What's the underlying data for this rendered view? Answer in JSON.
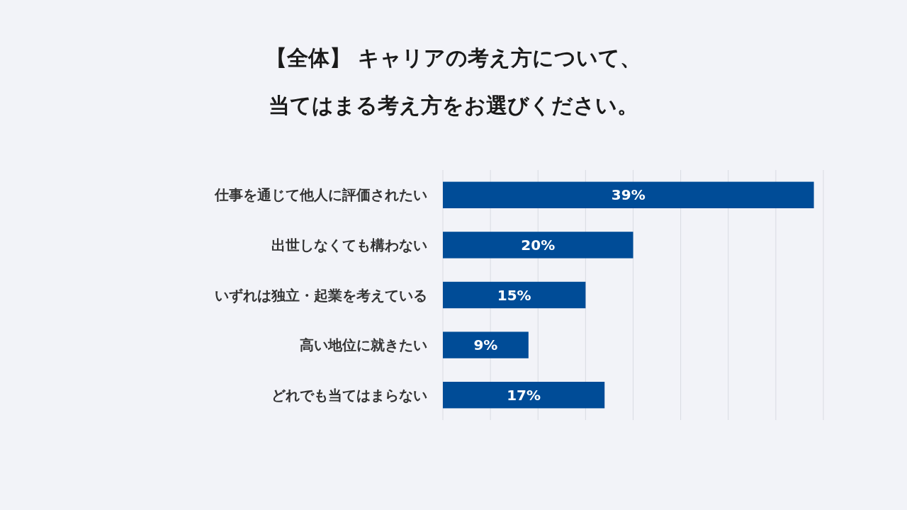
{
  "chart_data": {
    "type": "bar",
    "orientation": "horizontal",
    "title": "【全体】 キャリアの考え方について、",
    "subtitle": "当てはまる考え方をお選びください。",
    "categories": [
      "仕事を通じて他人に評価されたい",
      "出世しなくても構わない",
      "いずれは独立・起業を考えている",
      "高い地位に就きたい",
      "どれでも当てはまらない"
    ],
    "values": [
      39,
      20,
      15,
      9,
      17
    ],
    "color": "#004c97",
    "data_labels": true,
    "value_labels": [
      "39%",
      "20%",
      "15%",
      "9%",
      "17%"
    ],
    "xlim": [
      0,
      40
    ],
    "xticks": [
      {
        "value": 0,
        "label": null
      },
      {
        "value": 5,
        "label": null
      },
      {
        "value": 10,
        "label": null
      },
      {
        "value": 15,
        "label": null
      },
      {
        "value": 20,
        "label": null
      },
      {
        "value": 25,
        "label": null
      },
      {
        "value": 30,
        "label": null
      },
      {
        "value": 35,
        "label": null
      },
      {
        "value": 40,
        "label": null
      }
    ],
    "grid": "x",
    "tick_labels": "y"
  }
}
